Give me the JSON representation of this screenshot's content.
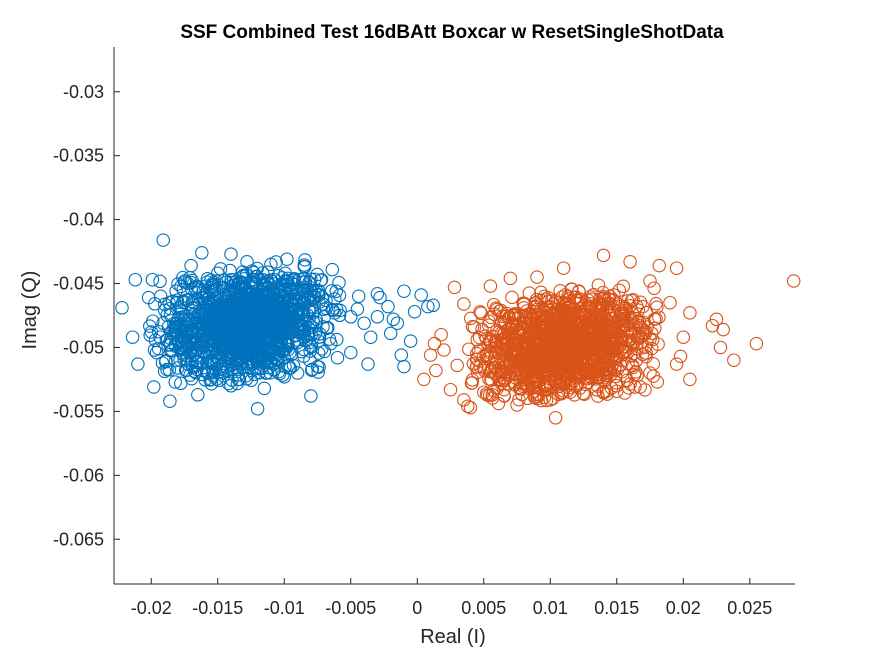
{
  "chart_data": {
    "type": "scatter",
    "title": "SSF Combined Test 16dBAtt Boxcar w ResetSingleShotData",
    "xlabel": "Real (I)",
    "ylabel": "Imag (Q)",
    "xlim": [
      -0.0228,
      0.0284
    ],
    "ylim": [
      -0.0685,
      -0.0265
    ],
    "xticks": [
      -0.02,
      -0.015,
      -0.01,
      -0.005,
      0,
      0.005,
      0.01,
      0.015,
      0.02,
      0.025
    ],
    "xtick_labels": [
      "-0.02",
      "-0.015",
      "-0.01",
      "-0.005",
      "0",
      "0.005",
      "0.01",
      "0.015",
      "0.02",
      "0.025"
    ],
    "yticks": [
      -0.03,
      -0.035,
      -0.04,
      -0.045,
      -0.05,
      -0.055,
      -0.06,
      -0.065
    ],
    "ytick_labels": [
      "-0.03",
      "-0.035",
      "-0.04",
      "-0.045",
      "-0.05",
      "-0.055",
      "-0.06",
      "-0.065"
    ],
    "grid": false,
    "marker": "open-circle",
    "series": [
      {
        "color": "#0072BD",
        "points": [
          [
            -0.0191,
            -0.0416
          ],
          [
            -0.0162,
            -0.0426
          ],
          [
            -0.014,
            -0.0427
          ],
          [
            -0.0098,
            -0.0431
          ],
          [
            -0.011,
            -0.0435
          ],
          [
            -0.0128,
            -0.0433
          ],
          [
            -0.017,
            -0.0436
          ],
          [
            -0.0212,
            -0.0447
          ],
          [
            -0.0175,
            -0.0448
          ],
          [
            -0.015,
            -0.0442
          ],
          [
            -0.0085,
            -0.0446
          ],
          [
            -0.0072,
            -0.0447
          ],
          [
            -0.0228,
            -0.0528
          ],
          [
            -0.0222,
            -0.0469
          ],
          [
            -0.0214,
            -0.0492
          ],
          [
            -0.021,
            -0.0513
          ],
          [
            -0.0202,
            -0.0461
          ],
          [
            -0.0196,
            -0.0504
          ],
          [
            -0.0191,
            -0.0481
          ],
          [
            -0.0186,
            -0.0542
          ],
          [
            -0.0182,
            -0.0527
          ],
          [
            -0.018,
            -0.0516
          ],
          [
            -0.017,
            -0.0512
          ],
          [
            -0.0165,
            -0.0537
          ],
          [
            -0.0155,
            -0.0525
          ],
          [
            -0.014,
            -0.053
          ],
          [
            -0.012,
            -0.0548
          ],
          [
            -0.0115,
            -0.0532
          ],
          [
            -0.01,
            -0.0523
          ],
          [
            -0.009,
            -0.052
          ],
          [
            -0.008,
            -0.0538
          ],
          [
            -0.0075,
            -0.0515
          ],
          [
            -0.006,
            -0.0508
          ],
          [
            -0.005,
            -0.0504
          ],
          [
            -0.0037,
            -0.0513
          ],
          [
            -0.0062,
            -0.0462
          ],
          [
            -0.0058,
            -0.0471
          ],
          [
            -0.005,
            -0.0476
          ],
          [
            -0.0045,
            -0.047
          ],
          [
            -0.004,
            -0.0481
          ],
          [
            -0.0035,
            -0.0492
          ],
          [
            -0.003,
            -0.0476
          ],
          [
            -0.0028,
            -0.0461
          ],
          [
            -0.0022,
            -0.0468
          ],
          [
            -0.002,
            -0.0489
          ],
          [
            -0.0018,
            -0.0478
          ],
          [
            -0.0015,
            -0.0481
          ],
          [
            -0.001,
            -0.0456
          ],
          [
            -0.0012,
            -0.0506
          ],
          [
            -0.001,
            -0.0515
          ],
          [
            -0.0005,
            -0.0495
          ],
          [
            -0.0002,
            -0.0472
          ],
          [
            0.0003,
            -0.0459
          ],
          [
            0.0008,
            -0.0468
          ],
          [
            0.0012,
            -0.0467
          ],
          [
            -0.003,
            -0.0458
          ],
          [
            -0.0065,
            -0.0497
          ],
          [
            -0.0068,
            -0.0485
          ],
          [
            -0.0071,
            -0.0466
          ],
          [
            -0.0044,
            -0.046
          ]
        ]
      },
      {
        "color": "#D95319",
        "points": [
          [
            0.0283,
            -0.0448
          ],
          [
            0.0255,
            -0.0497
          ],
          [
            0.0238,
            -0.051
          ],
          [
            0.023,
            -0.0486
          ],
          [
            0.0228,
            -0.05
          ],
          [
            0.0225,
            -0.0478
          ],
          [
            0.0222,
            -0.0483
          ],
          [
            0.0205,
            -0.0525
          ],
          [
            0.0198,
            -0.0507
          ],
          [
            0.0195,
            -0.0438
          ],
          [
            0.0182,
            -0.0436
          ],
          [
            0.0175,
            -0.0448
          ],
          [
            0.016,
            -0.0433
          ],
          [
            0.014,
            -0.0428
          ],
          [
            0.011,
            -0.0438
          ],
          [
            0.009,
            -0.0445
          ],
          [
            0.007,
            -0.0446
          ],
          [
            0.0055,
            -0.0452
          ],
          [
            0.0028,
            -0.0453
          ],
          [
            0.0035,
            -0.0466
          ],
          [
            0.0018,
            -0.049
          ],
          [
            0.0013,
            -0.0497
          ],
          [
            0.001,
            -0.0506
          ],
          [
            0.0005,
            -0.0525
          ],
          [
            0.0014,
            -0.0518
          ],
          [
            0.002,
            -0.0502
          ],
          [
            0.003,
            -0.0514
          ],
          [
            0.0025,
            -0.0533
          ],
          [
            0.0035,
            -0.0541
          ],
          [
            0.0038,
            -0.0546
          ],
          [
            0.004,
            -0.0547
          ],
          [
            0.005,
            -0.0535
          ],
          [
            0.006,
            -0.0532
          ],
          [
            0.0075,
            -0.0545
          ],
          [
            0.009,
            -0.054
          ],
          [
            0.01,
            -0.0541
          ],
          [
            0.0104,
            -0.0555
          ],
          [
            0.0115,
            -0.0535
          ],
          [
            0.0135,
            -0.0533
          ],
          [
            0.015,
            -0.053
          ],
          [
            0.0175,
            -0.052
          ],
          [
            0.0195,
            -0.0513
          ],
          [
            0.02,
            -0.0492
          ],
          [
            0.0205,
            -0.0473
          ],
          [
            0.019,
            -0.0465
          ]
        ]
      }
    ],
    "clusters": [
      {
        "color": "#0072BD",
        "cx": -0.013,
        "cy": -0.0482,
        "sx": 0.003,
        "sy": 0.002,
        "n": 1340
      },
      {
        "color": "#D95319",
        "cx": 0.011,
        "cy": -0.0498,
        "sx": 0.003,
        "sy": 0.0019,
        "n": 1340
      }
    ]
  }
}
